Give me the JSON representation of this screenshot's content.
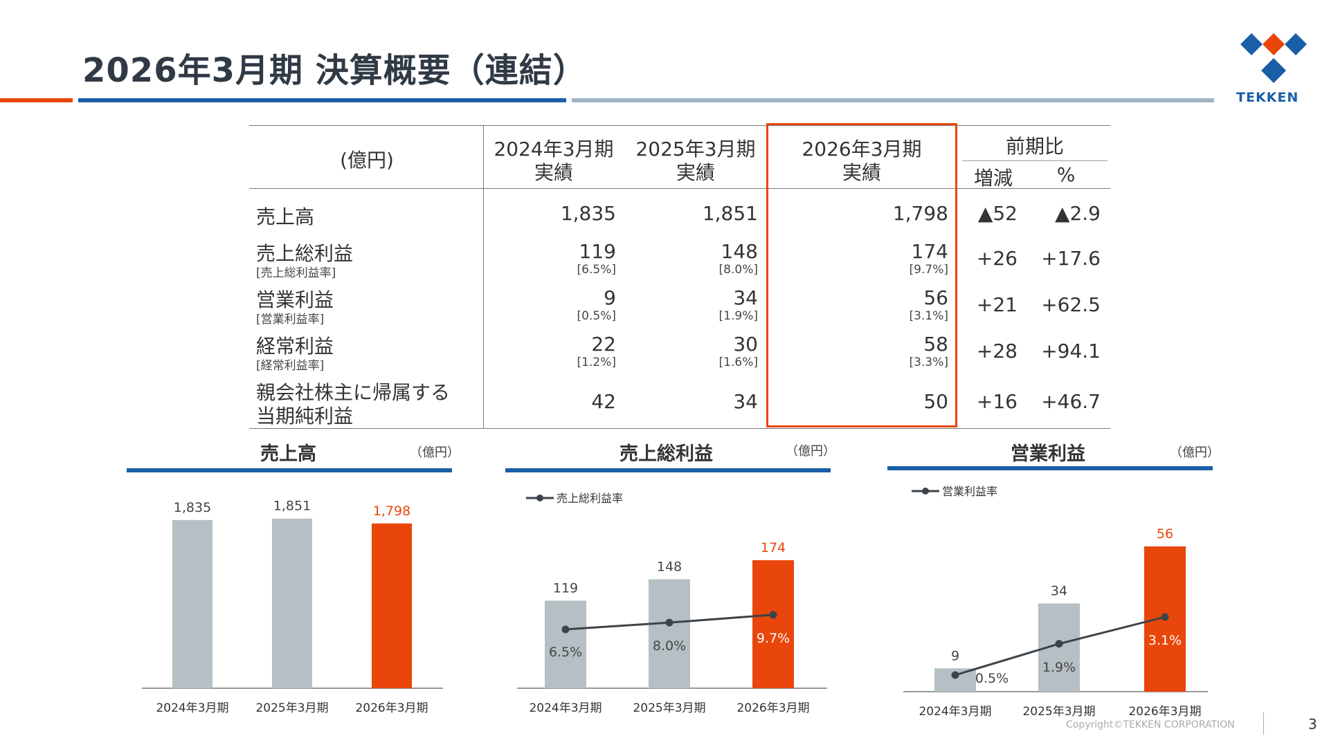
{
  "header": {
    "title": "2026年3月期 決算概要（連結）",
    "logo_text": "TEKKEN"
  },
  "colors": {
    "accent": "#e8460a",
    "brand_blue": "#1a5ea8",
    "gray_bar": "#b5bfc4",
    "light_blue": "#9fb5c6",
    "line": "#3d4349"
  },
  "table": {
    "unit": "(億円)",
    "col_2024": [
      "2024年3月期",
      "実績"
    ],
    "col_2025": [
      "2025年3月期",
      "実績"
    ],
    "col_2026": [
      "2026年3月期",
      "実績"
    ],
    "col_compare": "前期比",
    "col_diff": "増減",
    "col_pct": "%",
    "rows": [
      {
        "label": "売上高",
        "sub": "",
        "v2024": "1,835",
        "r2024": "",
        "v2025": "1,851",
        "r2025": "",
        "v2026": "1,798",
        "r2026": "",
        "diff": "▲52",
        "pct": "▲2.9"
      },
      {
        "label": "売上総利益",
        "sub": "[売上総利益率]",
        "v2024": "119",
        "r2024": "[6.5%]",
        "v2025": "148",
        "r2025": "[8.0%]",
        "v2026": "174",
        "r2026": "[9.7%]",
        "diff": "+26",
        "pct": "+17.6"
      },
      {
        "label": "営業利益",
        "sub": "[営業利益率]",
        "v2024": "9",
        "r2024": "[0.5%]",
        "v2025": "34",
        "r2025": "[1.9%]",
        "v2026": "56",
        "r2026": "[3.1%]",
        "diff": "+21",
        "pct": "+62.5"
      },
      {
        "label": "経常利益",
        "sub": "[経常利益率]",
        "v2024": "22",
        "r2024": "[1.2%]",
        "v2025": "30",
        "r2025": "[1.6%]",
        "v2026": "58",
        "r2026": "[3.3%]",
        "diff": "+28",
        "pct": "+94.1"
      },
      {
        "label": "親会社株主に帰属する",
        "sub": "当期純利益",
        "v2024": "42",
        "r2024": "",
        "v2025": "34",
        "r2025": "",
        "v2026": "50",
        "r2026": "",
        "diff": "+16",
        "pct": "+46.7"
      }
    ]
  },
  "chart_data": [
    {
      "type": "bar",
      "title": "売上高",
      "unit": "（億円）",
      "categories": [
        "2024年3月期",
        "2025年3月期",
        "2026年3月期"
      ],
      "values": [
        1835,
        1851,
        1798
      ],
      "value_labels": [
        "1,835",
        "1,851",
        "1,798"
      ],
      "highlight_index": 2
    },
    {
      "type": "bar",
      "title": "売上総利益",
      "unit": "（億円）",
      "legend": "売上総利益率",
      "categories": [
        "2024年3月期",
        "2025年3月期",
        "2026年3月期"
      ],
      "values": [
        119,
        148,
        174
      ],
      "value_labels": [
        "119",
        "148",
        "174"
      ],
      "line_values": [
        6.5,
        8.0,
        9.7
      ],
      "line_labels": [
        "6.5%",
        "8.0%",
        "9.7%"
      ],
      "highlight_index": 2
    },
    {
      "type": "bar",
      "title": "営業利益",
      "unit": "（億円）",
      "legend": "営業利益率",
      "categories": [
        "2024年3月期",
        "2025年3月期",
        "2026年3月期"
      ],
      "values": [
        9,
        34,
        56
      ],
      "value_labels": [
        "9",
        "34",
        "56"
      ],
      "line_values": [
        0.5,
        1.9,
        3.1
      ],
      "line_labels": [
        "0.5%",
        "1.9%",
        "3.1%"
      ],
      "highlight_index": 2
    }
  ],
  "footer": {
    "copyright": "Copyright©TEKKEN CORPORATION",
    "page": "3"
  }
}
